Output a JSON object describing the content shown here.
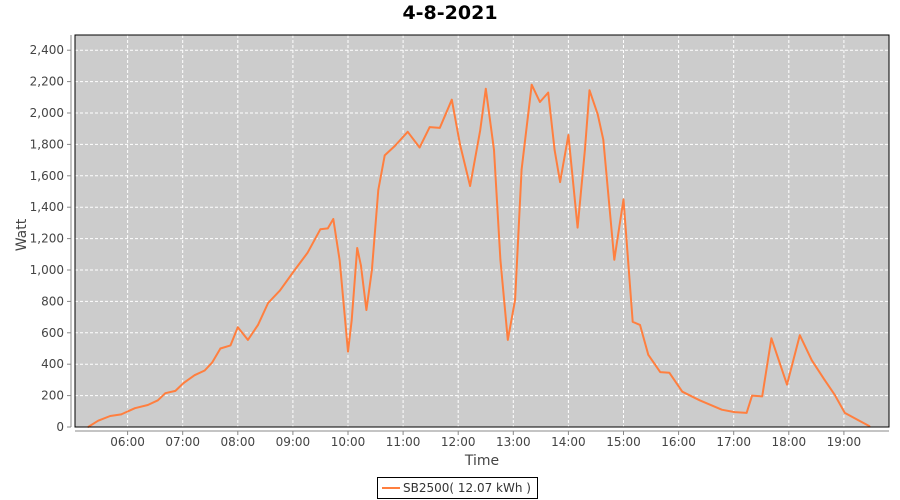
{
  "chart_data": {
    "type": "line",
    "title": "4-8-2021",
    "xlabel": "Time",
    "ylabel": "Watt",
    "ylim": [
      0,
      2500
    ],
    "xlim": [
      "05:03",
      "19:48"
    ],
    "grid": true,
    "legend_position": "bottom",
    "yticks": [
      "0",
      "200",
      "400",
      "600",
      "800",
      "1,000",
      "1,200",
      "1,400",
      "1,600",
      "1,800",
      "2,000",
      "2,200",
      "2,400"
    ],
    "xticks": [
      "06:00",
      "07:00",
      "08:00",
      "09:00",
      "10:00",
      "11:00",
      "12:00",
      "13:00",
      "14:00",
      "15:00",
      "16:00",
      "17:00",
      "18:00",
      "19:00"
    ],
    "series": [
      {
        "name": "SB2500( 12.07 kWh )",
        "color": "#ff7f3f",
        "points": [
          [
            "05:17",
            0
          ],
          [
            "05:28",
            40
          ],
          [
            "05:41",
            70
          ],
          [
            "05:53",
            80
          ],
          [
            "06:08",
            120
          ],
          [
            "06:22",
            140
          ],
          [
            "06:33",
            170
          ],
          [
            "06:41",
            215
          ],
          [
            "06:52",
            230
          ],
          [
            "07:01",
            280
          ],
          [
            "07:13",
            330
          ],
          [
            "07:24",
            360
          ],
          [
            "07:32",
            410
          ],
          [
            "07:41",
            500
          ],
          [
            "07:52",
            520
          ],
          [
            "08:00",
            635
          ],
          [
            "08:11",
            555
          ],
          [
            "08:22",
            650
          ],
          [
            "08:33",
            790
          ],
          [
            "08:46",
            870
          ],
          [
            "09:02",
            1000
          ],
          [
            "09:16",
            1110
          ],
          [
            "09:30",
            1260
          ],
          [
            "09:38",
            1265
          ],
          [
            "09:44",
            1325
          ],
          [
            "09:51",
            1060
          ],
          [
            "10:00",
            480
          ],
          [
            "10:04",
            680
          ],
          [
            "10:10",
            1140
          ],
          [
            "10:14",
            1030
          ],
          [
            "10:20",
            745
          ],
          [
            "10:26",
            1000
          ],
          [
            "10:33",
            1510
          ],
          [
            "10:40",
            1730
          ],
          [
            "10:51",
            1790
          ],
          [
            "11:05",
            1880
          ],
          [
            "11:18",
            1780
          ],
          [
            "11:29",
            1910
          ],
          [
            "11:40",
            1905
          ],
          [
            "11:53",
            2085
          ],
          [
            "12:02",
            1800
          ],
          [
            "12:13",
            1535
          ],
          [
            "12:24",
            1890
          ],
          [
            "12:30",
            2155
          ],
          [
            "12:39",
            1765
          ],
          [
            "12:46",
            1065
          ],
          [
            "12:54",
            555
          ],
          [
            "13:02",
            810
          ],
          [
            "13:09",
            1640
          ],
          [
            "13:20",
            2180
          ],
          [
            "13:29",
            2070
          ],
          [
            "13:38",
            2130
          ],
          [
            "13:45",
            1765
          ],
          [
            "13:51",
            1560
          ],
          [
            "14:00",
            1860
          ],
          [
            "14:10",
            1270
          ],
          [
            "14:18",
            1765
          ],
          [
            "14:23",
            2145
          ],
          [
            "14:32",
            1990
          ],
          [
            "14:38",
            1830
          ],
          [
            "14:50",
            1065
          ],
          [
            "15:00",
            1450
          ],
          [
            "15:10",
            670
          ],
          [
            "15:18",
            650
          ],
          [
            "15:27",
            460
          ],
          [
            "15:40",
            350
          ],
          [
            "15:50",
            345
          ],
          [
            "16:04",
            225
          ],
          [
            "16:23",
            170
          ],
          [
            "16:47",
            110
          ],
          [
            "17:01",
            95
          ],
          [
            "17:14",
            90
          ],
          [
            "17:20",
            200
          ],
          [
            "17:31",
            195
          ],
          [
            "17:41",
            565
          ],
          [
            "17:58",
            270
          ],
          [
            "18:12",
            585
          ],
          [
            "18:25",
            425
          ],
          [
            "18:39",
            300
          ],
          [
            "18:50",
            205
          ],
          [
            "19:01",
            90
          ],
          [
            "19:15",
            45
          ],
          [
            "19:28",
            5
          ]
        ]
      }
    ]
  }
}
